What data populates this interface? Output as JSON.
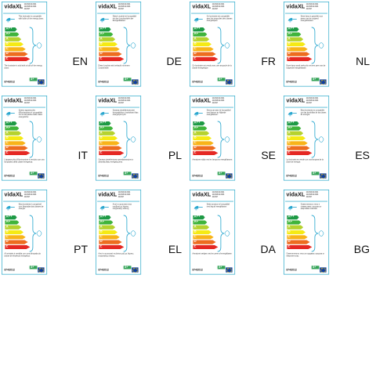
{
  "brand": "vidaXL",
  "regulation": "874/2012",
  "energy_classes": [
    "A++",
    "A+",
    "A",
    "B",
    "C",
    "D",
    "E"
  ],
  "energy_class_colors": [
    "#1e9a45",
    "#3fb43b",
    "#b6d22e",
    "#f5ea14",
    "#f8b419",
    "#ed6c1f",
    "#e52823"
  ],
  "badge_class": "A+",
  "labels": [
    {
      "lang": "EN",
      "codes": "244393/244394\n244395/244396\n244397",
      "top_text": "This luminaire is compatible with bulbs of the energy class:",
      "bottom_text": "The luminaire is sold with a bulb of the energy class:"
    },
    {
      "lang": "DE",
      "codes": "244393/244394\n244395/244396\n244397",
      "top_text": "Diese Leuchte ist kompatibel mit den Leuchtmitteln der Energieklassen:",
      "bottom_text": "Diese Leuchte wird verkauft mit einem Leuchtmittel:"
    },
    {
      "lang": "FR",
      "codes": "244393/244394\n244395/244396\n244397",
      "top_text": "Ce luminaire est compatible avec les ampoules des classes énergétiques:",
      "bottom_text": "Ce luminaire est vendu avec une ampoule de la classe énergétique:"
    },
    {
      "lang": "NL",
      "codes": "244393/244394\n244395/244396\n244397",
      "top_text": "Deze lamp is geschikt voor peren van de volgend energieklassen:",
      "bottom_text": "Deze lamp wordt verkocht met een peer van de volgende energieklasse:"
    },
    {
      "lang": "IT",
      "codes": "244393/244394\n244395/244396\n244397",
      "top_text": "Questo apparecchio d'illuminazione è compatibile con le lampadine delle classi energetiche:",
      "bottom_text": "L'apparecchio d'illuminazione è venduto con una lampadina della classe energetica:"
    },
    {
      "lang": "PL",
      "codes": "244393/244394\n244395/244396\n244397",
      "top_text": "Oprawa oświetleniowa jest kompatybilna z żarówkami klas energetycznych:",
      "bottom_text": "Oprawa oświetleniowa sprzedawana jest z żarówką klasy energetycznej:"
    },
    {
      "lang": "SE",
      "codes": "244393/244394\n244395/244396\n244397",
      "top_text": "Denna armatur är kompatibel med lampor av följande energiklasser:",
      "bottom_text": "Armaturen säljs med en lampa av energiklassen:"
    },
    {
      "lang": "ES",
      "codes": "244393/244394\n244395/244396\n244397",
      "top_text": "Esta luminaria es compatible con las bombillas de las clases de energía:",
      "bottom_text": "La luminaria se vende con una lámpara de la clase de energía:"
    },
    {
      "lang": "PT",
      "codes": "244393/244394\n244395/244396\n244397",
      "top_text": "Esta luminária é compatível com lâmpadas das classes de energia:",
      "bottom_text": "A luminária é vendida com uma lâmpada da classe de eficiência energética:"
    },
    {
      "lang": "EL",
      "codes": "244393/244394\n244395/244396\n244397",
      "top_text": "Αυτό το φωτιστικό είναι συμβατό με λάμπες ενεργειακής κλάσης:",
      "bottom_text": "Αυτό το φωτιστικό πωλείται μαζί με λάμπες ενεργειακής κλάσης:"
    },
    {
      "lang": "DA",
      "codes": "244393/244394\n244395/244396\n244397",
      "top_text": "Dette armatur er kompatibel med løg af energiklasse:",
      "bottom_text": "Armaturet sælges med en pære af energiklasse:"
    },
    {
      "lang": "BG",
      "codes": "244393/244394\n244395/244396\n244397",
      "top_text": "Осветителното тяло е съвместимо с крушки от енергийни класове:",
      "bottom_text": "Осветителното тяло се продава с крушка от енергиен клас:"
    }
  ]
}
